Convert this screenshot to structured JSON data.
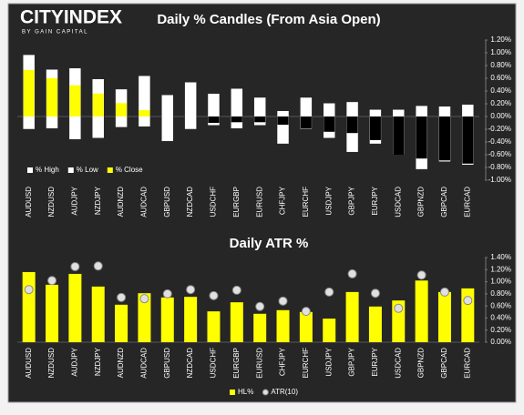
{
  "logo": {
    "name": "CITYINDEX",
    "tagline": "BY GAIN CAPITAL"
  },
  "chart_data": [
    {
      "type": "candle",
      "title": "Daily % Candles (From Asia Open)",
      "categories": [
        "AUDUSD",
        "NZDUSD",
        "AUDJPY",
        "NZDJPY",
        "AUDNZD",
        "AUDCAD",
        "GBPUSD",
        "NZDCAD",
        "USDCHF",
        "EURGBP",
        "EURUSD",
        "CHFJPY",
        "EURCHF",
        "USDJPY",
        "GBPJPY",
        "EURJPY",
        "USDCAD",
        "GBPNZD",
        "GBPCAD",
        "EURCAD"
      ],
      "series": [
        {
          "name": "% High",
          "color": "#ffffff",
          "values": [
            0.97,
            0.74,
            0.76,
            0.59,
            0.43,
            0.64,
            0.34,
            0.54,
            0.36,
            0.44,
            0.3,
            0.09,
            0.3,
            0.21,
            0.23,
            0.11,
            0.11,
            0.17,
            0.16,
            0.19
          ]
        },
        {
          "name": "% Low",
          "color": "#ffffff",
          "values": [
            -0.2,
            -0.19,
            -0.36,
            -0.34,
            -0.17,
            -0.16,
            -0.39,
            -0.2,
            -0.14,
            -0.19,
            -0.14,
            -0.43,
            -0.2,
            -0.34,
            -0.56,
            -0.43,
            -0.6,
            -0.83,
            -0.71,
            -0.76
          ]
        },
        {
          "name": "% Close",
          "color": "#ffff00",
          "negative_color": "#000000",
          "values": [
            0.73,
            0.6,
            0.49,
            0.36,
            0.21,
            0.1,
            0,
            0,
            -0.1,
            -0.09,
            -0.09,
            -0.13,
            -0.19,
            -0.24,
            -0.26,
            -0.37,
            -0.6,
            -0.66,
            -0.69,
            -0.74
          ]
        }
      ],
      "ylim": [
        -1.0,
        1.2
      ],
      "yticks": [
        {
          "value": 1.2,
          "label": "1.20%"
        },
        {
          "value": 1.0,
          "label": "1.00%"
        },
        {
          "value": 0.8,
          "label": "0.80%"
        },
        {
          "value": 0.6,
          "label": "0.60%"
        },
        {
          "value": 0.4,
          "label": "0.40%"
        },
        {
          "value": 0.2,
          "label": "0.20%"
        },
        {
          "value": 0,
          "label": "0.00%"
        },
        {
          "value": -0.2,
          "label": "-0.20%"
        },
        {
          "value": -0.4,
          "label": "-0.40%"
        },
        {
          "value": -0.6,
          "label": "-0.60%"
        },
        {
          "value": -0.8,
          "label": "-0.80%"
        },
        {
          "value": -1.0,
          "label": "-1.00%"
        }
      ],
      "legend": "bottom-left"
    },
    {
      "type": "bar",
      "title": "Daily ATR %",
      "categories": [
        "AUDUSD",
        "NZDUSD",
        "AUDJPY",
        "NZDJPY",
        "AUDNZD",
        "AUDCAD",
        "GBPUSD",
        "NZDCAD",
        "USDCHF",
        "EURGBP",
        "EURUSD",
        "CHFJPY",
        "EURCHF",
        "USDJPY",
        "GBPJPY",
        "EURJPY",
        "USDCAD",
        "GBPNZD",
        "GBPCAD",
        "EURCAD"
      ],
      "series": [
        {
          "name": "HL%",
          "color": "#ffff00",
          "mark": "bar",
          "values": [
            1.16,
            0.95,
            1.13,
            0.92,
            0.62,
            0.81,
            0.74,
            0.75,
            0.51,
            0.66,
            0.47,
            0.53,
            0.5,
            0.39,
            0.83,
            0.59,
            0.69,
            1.02,
            0.83,
            0.89
          ]
        },
        {
          "name": "ATR(10)",
          "color": "#e0e0e0",
          "mark": "dot",
          "values": [
            0.87,
            1.02,
            1.25,
            1.26,
            0.74,
            0.72,
            0.8,
            0.87,
            0.77,
            0.86,
            0.59,
            0.68,
            0.51,
            0.83,
            1.13,
            0.81,
            0.56,
            1.11,
            0.83,
            0.69
          ]
        }
      ],
      "ylim": [
        0,
        1.4
      ],
      "yticks": [
        {
          "value": 1.4,
          "label": "1.40%"
        },
        {
          "value": 1.2,
          "label": "1.20%"
        },
        {
          "value": 1.0,
          "label": "1.00%"
        },
        {
          "value": 0.8,
          "label": "0.80%"
        },
        {
          "value": 0.6,
          "label": "0.60%"
        },
        {
          "value": 0.4,
          "label": "0.40%"
        },
        {
          "value": 0.2,
          "label": "0.20%"
        },
        {
          "value": 0,
          "label": "0.00%"
        }
      ],
      "legend": "bottom-center"
    }
  ]
}
